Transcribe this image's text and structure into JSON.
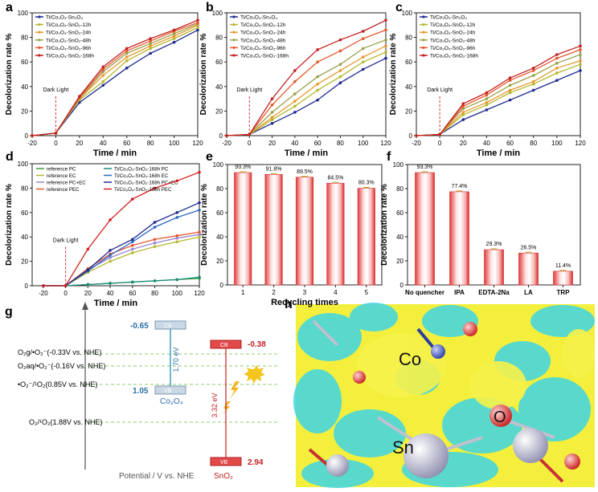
{
  "panel_letters": [
    "a",
    "b",
    "c",
    "d",
    "e",
    "f",
    "g",
    "h"
  ],
  "chart_data": [
    {
      "panel": "a",
      "type": "line",
      "xlabel": "Time / min",
      "ylabel": "Decolorization rate %",
      "xlim": [
        -20,
        120
      ],
      "ylim": [
        0,
        100
      ],
      "xticks": [
        -20,
        0,
        20,
        40,
        60,
        80,
        100,
        120
      ],
      "yticks": [
        0,
        20,
        40,
        60,
        80,
        100
      ],
      "annotation": "Dark Light",
      "x": [
        -20,
        0,
        20,
        40,
        60,
        80,
        100,
        120
      ],
      "series": [
        {
          "name": "Ti/Co₃O₄-Sn₃O₄",
          "color": "#1f2b8f",
          "values": [
            0,
            2,
            27,
            41,
            55,
            67,
            76,
            86
          ]
        },
        {
          "name": "Ti/Co₃O₄-SnO₂-12h",
          "color": "#b5b82e",
          "values": [
            0,
            2,
            29,
            44,
            61,
            71,
            79,
            88
          ]
        },
        {
          "name": "Ti/Co₃O₄-SnO₂-24h",
          "color": "#e69a2e",
          "values": [
            0,
            2,
            30,
            49,
            64,
            73,
            81,
            90
          ]
        },
        {
          "name": "Ti/Co₃O₄-SnO₂-48h",
          "color": "#9aa04a",
          "values": [
            0,
            2,
            30,
            52,
            67,
            75,
            83,
            91
          ]
        },
        {
          "name": "Ti/Co₃O₄-SnO₂-96h",
          "color": "#e6592e",
          "values": [
            0,
            2,
            31,
            54,
            69,
            77,
            85,
            92
          ]
        },
        {
          "name": "Ti/Co₃O₄-SnO₂-168h",
          "color": "#c42020",
          "values": [
            0,
            2,
            32,
            56,
            71,
            79,
            86,
            94
          ]
        }
      ]
    },
    {
      "panel": "b",
      "type": "line",
      "xlabel": "Time / min",
      "ylabel": "Decolorization rate %",
      "xlim": [
        -20,
        120
      ],
      "ylim": [
        0,
        100
      ],
      "xticks": [
        -20,
        0,
        20,
        40,
        60,
        80,
        100,
        120
      ],
      "yticks": [
        0,
        20,
        40,
        60,
        80,
        100
      ],
      "annotation": "Dark Light",
      "x": [
        -20,
        0,
        20,
        40,
        60,
        80,
        100,
        120
      ],
      "series": [
        {
          "name": "Ti/Co₃O₄-Sn₃O₄",
          "color": "#1f2b8f",
          "values": [
            0,
            1,
            10,
            19,
            29,
            43,
            54,
            63
          ]
        },
        {
          "name": "Ti/Co₃O₄-SnO₂-12h",
          "color": "#b5b82e",
          "values": [
            0,
            1,
            13,
            24,
            37,
            48,
            60,
            68
          ]
        },
        {
          "name": "Ti/Co₃O₄-SnO₂-24h",
          "color": "#e69a2e",
          "values": [
            0,
            1,
            15,
            28,
            42,
            53,
            64,
            73
          ]
        },
        {
          "name": "Ti/Co₃O₄-SnO₂-48h",
          "color": "#9aa04a",
          "values": [
            0,
            1,
            19,
            34,
            48,
            58,
            71,
            78
          ]
        },
        {
          "name": "Ti/Co₃O₄-SnO₂-96h",
          "color": "#e6592e",
          "values": [
            0,
            1,
            25,
            44,
            60,
            69,
            79,
            86
          ]
        },
        {
          "name": "Ti/Co₃O₄-SnO₂-168h",
          "color": "#c42020",
          "values": [
            0,
            1,
            30,
            53,
            70,
            78,
            85,
            94
          ]
        }
      ]
    },
    {
      "panel": "c",
      "type": "line",
      "xlabel": "Time / min",
      "ylabel": "Decolorization rate %",
      "xlim": [
        -20,
        120
      ],
      "ylim": [
        0,
        100
      ],
      "xticks": [
        -20,
        0,
        20,
        40,
        60,
        80,
        100,
        120
      ],
      "yticks": [
        0,
        20,
        40,
        60,
        80,
        100
      ],
      "annotation": "Dark Light",
      "x": [
        -20,
        0,
        20,
        40,
        60,
        80,
        100,
        120
      ],
      "series": [
        {
          "name": "Ti/Co₃O₄-Sn₃O₄",
          "color": "#1f2b8f",
          "values": [
            0,
            1,
            13,
            21,
            29,
            37,
            45,
            53
          ]
        },
        {
          "name": "Ti/Co₃O₄-SnO₂-12h",
          "color": "#b5b82e",
          "values": [
            0,
            1,
            17,
            25,
            35,
            42,
            51,
            58
          ]
        },
        {
          "name": "Ti/Co₃O₄-SnO₂-24h",
          "color": "#e69a2e",
          "values": [
            0,
            1,
            19,
            27,
            37,
            44,
            55,
            61
          ]
        },
        {
          "name": "Ti/Co₃O₄-SnO₂-48h",
          "color": "#9aa04a",
          "values": [
            0,
            1,
            22,
            30,
            41,
            49,
            59,
            66
          ]
        },
        {
          "name": "Ti/Co₃O₄-SnO₂-96h",
          "color": "#e6592e",
          "values": [
            0,
            1,
            24,
            33,
            45,
            53,
            63,
            70
          ]
        },
        {
          "name": "Ti/Co₃O₄-SnO₂-168h",
          "color": "#c42020",
          "values": [
            0,
            1,
            26,
            35,
            47,
            55,
            66,
            73
          ]
        }
      ]
    },
    {
      "panel": "d",
      "type": "line",
      "xlabel": "Time / min",
      "ylabel": "Decolorization rate %",
      "xlim": [
        -30,
        120
      ],
      "ylim": [
        0,
        100
      ],
      "xticks": [
        -20,
        0,
        20,
        40,
        60,
        80,
        100,
        120
      ],
      "yticks": [
        0,
        20,
        40,
        60,
        80,
        100
      ],
      "annotation": "Dark Light",
      "x": [
        -20,
        0,
        20,
        40,
        60,
        80,
        100,
        120
      ],
      "series": [
        {
          "name": "reference PC",
          "color": "#3a9d3a",
          "values": [
            0,
            0,
            1,
            2,
            3,
            4,
            5,
            6
          ]
        },
        {
          "name": "reference EC",
          "color": "#b5b82e",
          "values": [
            0,
            0,
            11,
            20,
            27,
            32,
            36,
            40
          ]
        },
        {
          "name": "reference PC+EC",
          "color": "#9a86d6",
          "values": [
            0,
            0,
            13,
            23,
            30,
            35,
            39,
            42
          ]
        },
        {
          "name": "reference PEC",
          "color": "#e6592e",
          "values": [
            0,
            0,
            14,
            26,
            33,
            38,
            41,
            44
          ]
        },
        {
          "name": "Ti/Co₃O₄-SnO₂-168h PC",
          "color": "#1a8a7a",
          "values": [
            0,
            0,
            1,
            2,
            3,
            4,
            5,
            7
          ]
        },
        {
          "name": "Ti/Co₃O₄-SnO₂-168h EC",
          "color": "#2e68c4",
          "values": [
            0,
            0,
            12,
            25,
            36,
            48,
            56,
            62
          ]
        },
        {
          "name": "Ti/Co₃O₄-SnO₂-168h PC+EC",
          "color": "#1f2b8f",
          "values": [
            0,
            0,
            13,
            29,
            38,
            52,
            60,
            68
          ]
        },
        {
          "name": "Ti/Co₃O₄-SnO₂-168h PEC",
          "color": "#d42020",
          "values": [
            0,
            0,
            30,
            54,
            71,
            80,
            86,
            93
          ]
        }
      ]
    },
    {
      "panel": "e",
      "type": "bar",
      "xlabel": "Recycling times",
      "ylabel": "Decolorization rate %",
      "ylim": [
        0,
        100
      ],
      "yticks": [
        0,
        20,
        40,
        60,
        80,
        100
      ],
      "categories": [
        "1",
        "2",
        "3",
        "4",
        "5"
      ],
      "values": [
        93.3,
        91.8,
        89.5,
        84.5,
        80.3
      ],
      "labels": [
        "93.3%",
        "91.8%",
        "89.5%",
        "84.5%",
        "80.3%"
      ]
    },
    {
      "panel": "f",
      "type": "bar",
      "xlabel": "",
      "ylabel": "Decolorization rate %",
      "ylim": [
        0,
        100
      ],
      "yticks": [
        0,
        20,
        40,
        60,
        80,
        100
      ],
      "categories": [
        "No quencher",
        "IPA",
        "EDTA-2Na",
        "LA",
        "TRP"
      ],
      "values": [
        93.3,
        77.4,
        29.3,
        26.5,
        11.4
      ],
      "labels": [
        "93.3%",
        "77.4%",
        "29.3%",
        "26.5%",
        "11.4%"
      ]
    }
  ],
  "diagram_g": {
    "co3o4_cb": "-0.65",
    "co3o4_cb_label": "CB",
    "co3o4_vb": "1.05",
    "co3o4_vb_label": "VB",
    "co3o4_gap": "1.70 eV",
    "co3o4_name": "Co₃O₄",
    "sno2_cb": "-0.38",
    "sno2_cb_label": "CB",
    "sno2_vb": "2.94",
    "sno2_vb_label": "VB",
    "sno2_gap": "3.32 eV",
    "sno2_name": "SnO₂",
    "potential_lines": [
      "O₂g/•O₂⁻(-0.33V vs. NHE)",
      "O₂aq/•O₂⁻(-0.16V vs. NHE)",
      "•O₂⁻/¹O₂(0.85V vs. NHE)",
      "O₂/¹O₂(1.88V vs. NHE)"
    ],
    "axis_label": "Potential / V vs. NHE"
  },
  "panel_h": {
    "labels": [
      "Co",
      "O",
      "Sn"
    ]
  }
}
